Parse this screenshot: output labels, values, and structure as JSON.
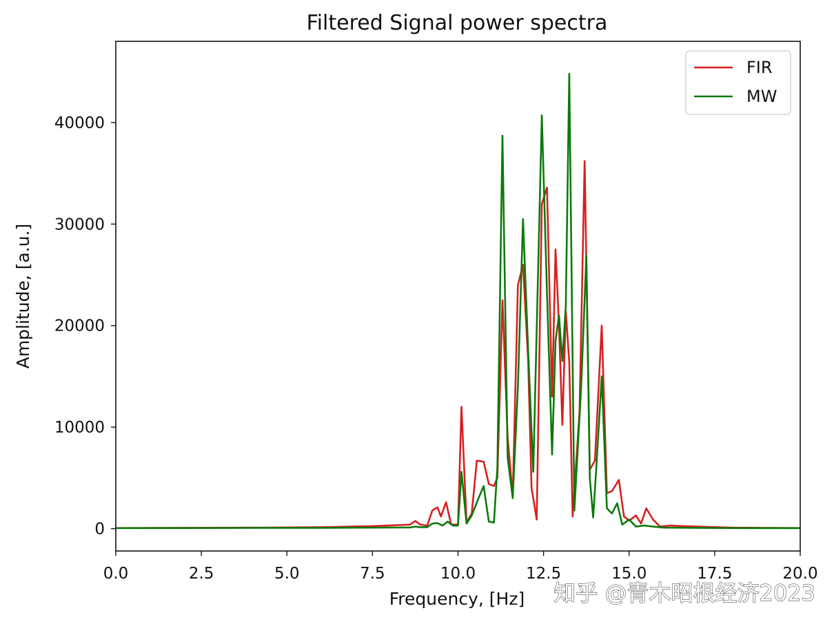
{
  "chart_data": {
    "type": "line",
    "title": "Filtered Signal power spectra",
    "xlabel": "Frequency, [Hz]",
    "ylabel": "Amplitude, [a.u.]",
    "xlim": [
      0,
      20
    ],
    "ylim": [
      -2200,
      48000
    ],
    "xticks": [
      0,
      2.5,
      5,
      7.5,
      10,
      12.5,
      15,
      17.5,
      20
    ],
    "xtick_labels": [
      "0.0",
      "2.5",
      "5.0",
      "7.5",
      "10.0",
      "12.5",
      "15.0",
      "17.5",
      "20.0"
    ],
    "yticks": [
      0,
      10000,
      20000,
      30000,
      40000
    ],
    "ytick_labels": [
      "0",
      "10000",
      "20000",
      "30000",
      "40000"
    ],
    "legend_position": "top-right",
    "grid": false,
    "series": [
      {
        "name": "FIR",
        "color": "#d62020",
        "points": [
          [
            0,
            60
          ],
          [
            2,
            80
          ],
          [
            4,
            100
          ],
          [
            6,
            150
          ],
          [
            7.5,
            250
          ],
          [
            8.6,
            400
          ],
          [
            8.75,
            750
          ],
          [
            8.9,
            400
          ],
          [
            9.1,
            300
          ],
          [
            9.25,
            1800
          ],
          [
            9.4,
            2100
          ],
          [
            9.5,
            1200
          ],
          [
            9.65,
            2600
          ],
          [
            9.8,
            400
          ],
          [
            10.0,
            400
          ],
          [
            10.1,
            12000
          ],
          [
            10.25,
            600
          ],
          [
            10.4,
            1500
          ],
          [
            10.55,
            6700
          ],
          [
            10.75,
            6600
          ],
          [
            10.9,
            4400
          ],
          [
            11.05,
            4200
          ],
          [
            11.15,
            5000
          ],
          [
            11.3,
            22500
          ],
          [
            11.45,
            9000
          ],
          [
            11.6,
            3200
          ],
          [
            11.75,
            24000
          ],
          [
            11.9,
            26000
          ],
          [
            12.05,
            16500
          ],
          [
            12.15,
            4000
          ],
          [
            12.3,
            900
          ],
          [
            12.45,
            32000
          ],
          [
            12.6,
            33600
          ],
          [
            12.75,
            13000
          ],
          [
            12.85,
            27500
          ],
          [
            12.95,
            20000
          ],
          [
            13.05,
            10200
          ],
          [
            13.15,
            21400
          ],
          [
            13.25,
            16400
          ],
          [
            13.35,
            1200
          ],
          [
            13.55,
            11500
          ],
          [
            13.7,
            36200
          ],
          [
            13.85,
            5800
          ],
          [
            14.0,
            6700
          ],
          [
            14.2,
            20000
          ],
          [
            14.35,
            3500
          ],
          [
            14.5,
            3700
          ],
          [
            14.7,
            4800
          ],
          [
            14.85,
            1200
          ],
          [
            15.0,
            800
          ],
          [
            15.2,
            1300
          ],
          [
            15.35,
            500
          ],
          [
            15.5,
            2000
          ],
          [
            15.7,
            900
          ],
          [
            15.9,
            200
          ],
          [
            16.2,
            300
          ],
          [
            16.6,
            250
          ],
          [
            17,
            200
          ],
          [
            18,
            100
          ],
          [
            19,
            80
          ],
          [
            20,
            60
          ]
        ]
      },
      {
        "name": "MW",
        "color": "#0b7a0b",
        "points": [
          [
            0,
            50
          ],
          [
            2,
            60
          ],
          [
            4,
            70
          ],
          [
            6,
            80
          ],
          [
            7.5,
            100
          ],
          [
            8.6,
            120
          ],
          [
            8.75,
            200
          ],
          [
            8.9,
            150
          ],
          [
            9.1,
            150
          ],
          [
            9.25,
            500
          ],
          [
            9.4,
            550
          ],
          [
            9.55,
            300
          ],
          [
            9.7,
            700
          ],
          [
            9.85,
            300
          ],
          [
            10.0,
            300
          ],
          [
            10.1,
            5600
          ],
          [
            10.25,
            500
          ],
          [
            10.4,
            1300
          ],
          [
            10.6,
            3000
          ],
          [
            10.75,
            4200
          ],
          [
            10.9,
            700
          ],
          [
            11.05,
            600
          ],
          [
            11.15,
            6000
          ],
          [
            11.3,
            38700
          ],
          [
            11.45,
            7000
          ],
          [
            11.6,
            3000
          ],
          [
            11.75,
            14000
          ],
          [
            11.9,
            30500
          ],
          [
            12.05,
            17500
          ],
          [
            12.2,
            5600
          ],
          [
            12.45,
            40700
          ],
          [
            12.6,
            23200
          ],
          [
            12.75,
            7300
          ],
          [
            12.85,
            18500
          ],
          [
            12.95,
            21000
          ],
          [
            13.05,
            16500
          ],
          [
            13.15,
            22000
          ],
          [
            13.25,
            44800
          ],
          [
            13.4,
            1800
          ],
          [
            13.6,
            14000
          ],
          [
            13.75,
            26900
          ],
          [
            13.85,
            5000
          ],
          [
            13.95,
            1100
          ],
          [
            14.05,
            6500
          ],
          [
            14.2,
            15000
          ],
          [
            14.35,
            2000
          ],
          [
            14.5,
            1500
          ],
          [
            14.65,
            2500
          ],
          [
            14.8,
            400
          ],
          [
            15.0,
            900
          ],
          [
            15.2,
            200
          ],
          [
            15.45,
            300
          ],
          [
            15.7,
            200
          ],
          [
            16,
            100
          ],
          [
            17,
            80
          ],
          [
            18,
            60
          ],
          [
            19,
            50
          ],
          [
            20,
            50
          ]
        ]
      }
    ]
  },
  "watermark": "知乎 @青木昭根经济2023"
}
